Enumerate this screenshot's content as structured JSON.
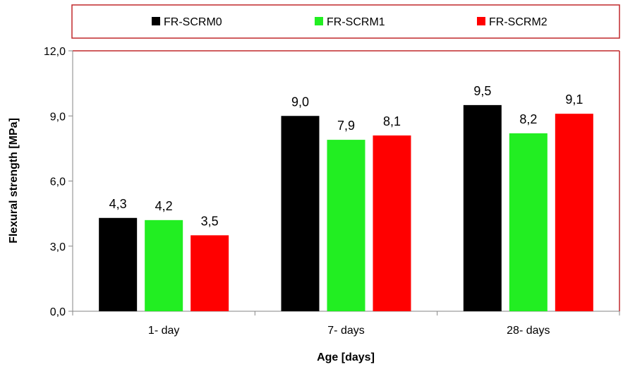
{
  "chart_data": {
    "type": "bar",
    "title": "",
    "xlabel": "Age [days]",
    "ylabel": "Flexural strength [MPa]",
    "categories": [
      "1- day",
      "7- days",
      "28- days"
    ],
    "series": [
      {
        "name": "FR-SCRM0",
        "color": "#000000",
        "values": [
          4.3,
          9.0,
          9.5
        ],
        "labels": [
          "4,3",
          "9,0",
          "9,5"
        ]
      },
      {
        "name": "FR-SCRM1",
        "color": "#22ee22",
        "values": [
          4.2,
          7.9,
          8.2
        ],
        "labels": [
          "4,2",
          "7,9",
          "8,2"
        ]
      },
      {
        "name": "FR-SCRM2",
        "color": "#ff0000",
        "values": [
          3.5,
          8.1,
          9.1
        ],
        "labels": [
          "3,5",
          "8,1",
          "9,1"
        ]
      }
    ],
    "ylim": [
      0,
      12
    ],
    "yticks": [
      "0,0",
      "3,0",
      "6,0",
      "9,0",
      "12,0"
    ],
    "legend_position": "top",
    "grid": false
  },
  "colors": {
    "frame": "#c0282b",
    "axis": "#868686"
  }
}
